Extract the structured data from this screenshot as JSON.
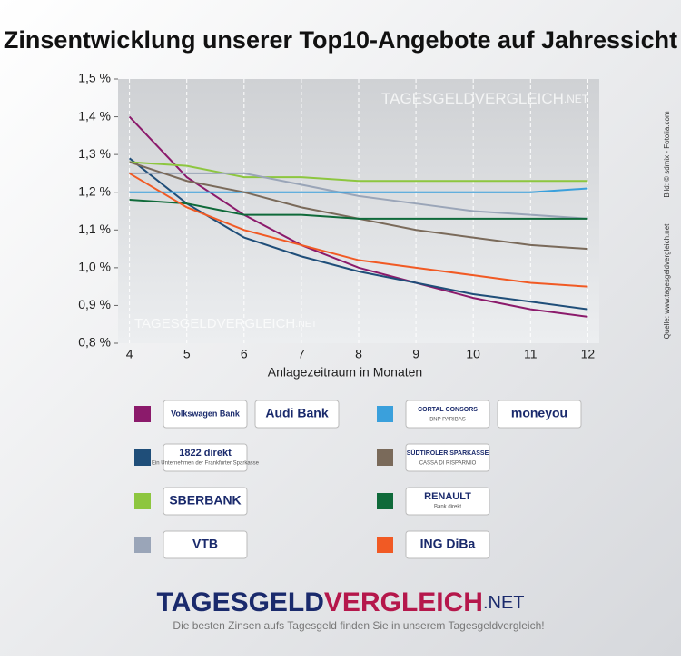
{
  "chart_data": {
    "type": "line",
    "title": "Zinsentwicklung unserer Top10-Angebote auf Jahressicht",
    "x_label": "Anlagezeitraum in Monaten",
    "x": [
      4,
      5,
      6,
      7,
      8,
      9,
      10,
      11,
      12
    ],
    "xlim": [
      3.8,
      12.2
    ],
    "xticks": [
      4,
      5,
      6,
      7,
      8,
      9,
      10,
      11,
      12
    ],
    "ylim": [
      0.8,
      1.5
    ],
    "yticks": [
      {
        "value": 0.8,
        "label": "0,8 %"
      },
      {
        "value": 0.9,
        "label": "0,9 %"
      },
      {
        "value": 1.0,
        "label": "1,0 %"
      },
      {
        "value": 1.1,
        "label": "1,1 %"
      },
      {
        "value": 1.2,
        "label": "1,2 %"
      },
      {
        "value": 1.3,
        "label": "1,3 %"
      },
      {
        "value": 1.4,
        "label": "1,4 %"
      },
      {
        "value": 1.5,
        "label": "1,5 %"
      }
    ],
    "grid": true,
    "watermark": [
      "TAGESGELDVERGLEICH",
      ".NET"
    ],
    "series": [
      {
        "color": "#8b1a6b",
        "values": [
          1.4,
          1.24,
          1.14,
          1.06,
          1.0,
          0.96,
          0.92,
          0.89,
          0.87
        ],
        "logos": [
          [
            "Volkswagen Bank"
          ],
          [
            "Audi Bank"
          ]
        ]
      },
      {
        "color": "#1f4e79",
        "values": [
          1.29,
          1.17,
          1.08,
          1.03,
          0.99,
          0.96,
          0.93,
          0.91,
          0.89
        ],
        "logos": [
          [
            "1822 direkt",
            "Ein Unternehmen der Frankfurter Sparkasse"
          ]
        ]
      },
      {
        "color": "#8dc63f",
        "values": [
          1.28,
          1.27,
          1.24,
          1.24,
          1.23,
          1.23,
          1.23,
          1.23,
          1.23
        ],
        "logos": [
          [
            "SBERBANK"
          ]
        ]
      },
      {
        "color": "#9aa5b8",
        "values": [
          1.25,
          1.25,
          1.25,
          1.22,
          1.19,
          1.17,
          1.15,
          1.14,
          1.13
        ],
        "logos": [
          [
            "VTB"
          ]
        ]
      },
      {
        "color": "#3aa0dc",
        "values": [
          1.2,
          1.2,
          1.2,
          1.2,
          1.2,
          1.2,
          1.2,
          1.2,
          1.21
        ],
        "logos": [
          [
            "CORTAL CONSORS",
            "BNP PARIBAS"
          ],
          [
            "moneyou"
          ]
        ]
      },
      {
        "color": "#7a6a5a",
        "values": [
          1.28,
          1.23,
          1.2,
          1.16,
          1.13,
          1.1,
          1.08,
          1.06,
          1.05
        ],
        "logos": [
          [
            "SÜDTIROLER SPARKASSE",
            "CASSA DI RISPARMIO"
          ]
        ]
      },
      {
        "color": "#0f6a3a",
        "values": [
          1.18,
          1.17,
          1.14,
          1.14,
          1.13,
          1.13,
          1.13,
          1.13,
          1.13
        ],
        "logos": [
          [
            "RENAULT",
            "Bank direkt"
          ]
        ]
      },
      {
        "color": "#f15a24",
        "values": [
          1.25,
          1.16,
          1.1,
          1.06,
          1.02,
          1.0,
          0.98,
          0.96,
          0.95
        ],
        "logos": [
          [
            "ING DiBa"
          ]
        ]
      }
    ]
  },
  "credits": [
    "Bild: © sdmix - Fotolia.com",
    "Quelle: www.tagesgeldvergleich.net"
  ],
  "footer": {
    "brand": [
      "TAGESGELD",
      "VERGLEICH",
      ".NET"
    ],
    "tagline": "Die besten Zinsen aufs Tagesgeld finden Sie in unserem Tagesgeldvergleich!"
  }
}
